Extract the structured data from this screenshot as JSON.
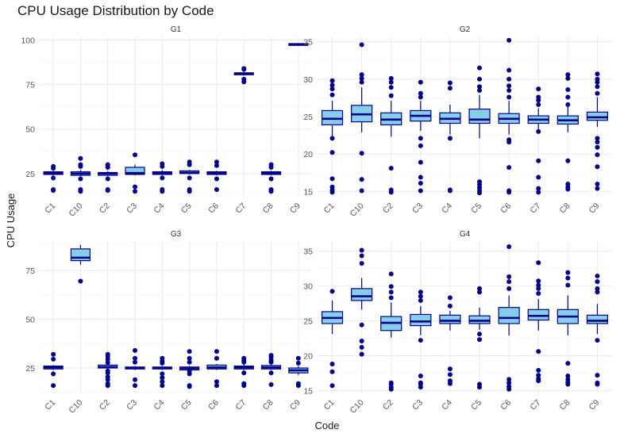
{
  "chart_data": {
    "type": "boxplot",
    "title": "CPU Usage Distribution by Code",
    "xlabel": "Code",
    "ylabel": "CPU Usage",
    "categories": [
      "C1",
      "C10",
      "C2",
      "C3",
      "C4",
      "C5",
      "C6",
      "C7",
      "C8",
      "C9"
    ],
    "colors": {
      "box_fill": "#87ceeb",
      "box_line": "#00008b",
      "outlier": "#00008b",
      "grid": "#ebebeb"
    },
    "grid": true,
    "panels": [
      {
        "name": "G1",
        "ylim": [
          12,
          102
        ],
        "yticks": [
          25,
          50,
          75,
          100
        ],
        "boxes": [
          {
            "cat": "C1",
            "q1": 24.5,
            "median": 25.3,
            "q3": 26,
            "whislo": 24,
            "whishi": 26.5,
            "outliers": [
              29,
              28,
              22.5,
              16,
              15.5
            ]
          },
          {
            "cat": "C10",
            "q1": 24,
            "median": 25,
            "q3": 26,
            "whislo": 23.5,
            "whishi": 27,
            "outliers": [
              33.5,
              30,
              29,
              22,
              16,
              15
            ]
          },
          {
            "cat": "C2",
            "q1": 24,
            "median": 25,
            "q3": 25.6,
            "whislo": 23.5,
            "whishi": 26.5,
            "outliers": [
              30,
              28.5,
              22,
              16,
              15.5
            ]
          },
          {
            "cat": "C3",
            "q1": 24.5,
            "median": 25.3,
            "q3": 28.5,
            "whislo": 24,
            "whishi": 30,
            "outliers": [
              35.5,
              17.5,
              15
            ]
          },
          {
            "cat": "C4",
            "q1": 24.5,
            "median": 25.3,
            "q3": 26,
            "whislo": 24,
            "whishi": 27,
            "outliers": [
              30.5,
              29,
              22.5,
              16,
              15
            ]
          },
          {
            "cat": "C5",
            "q1": 25,
            "median": 25.5,
            "q3": 26.5,
            "whislo": 24.5,
            "whishi": 27,
            "outliers": [
              31.5,
              30,
              22.5,
              16,
              15
            ]
          },
          {
            "cat": "C6",
            "q1": 24.5,
            "median": 25.3,
            "q3": 26,
            "whislo": 24,
            "whishi": 26.5,
            "outliers": [
              31.5,
              29.5,
              22,
              16
            ]
          },
          {
            "cat": "C7",
            "q1": 80.5,
            "median": 81,
            "q3": 81.6,
            "whislo": 80,
            "whishi": 82,
            "outliers": [
              84,
              83.5,
              78,
              76.5
            ]
          },
          {
            "cat": "C8",
            "q1": 24.5,
            "median": 25.3,
            "q3": 26,
            "whislo": 24,
            "whishi": 26.5,
            "outliers": [
              30,
              28.5,
              22,
              16,
              15
            ]
          },
          {
            "cat": "C9",
            "q1": 97,
            "median": 97.5,
            "q3": 98,
            "whislo": 96.8,
            "whishi": 98.3,
            "outliers": []
          }
        ]
      },
      {
        "name": "G2",
        "ylim": [
          14.3,
          35.7
        ],
        "yticks": [
          15,
          20,
          25,
          30,
          35
        ],
        "boxes": [
          {
            "cat": "C1",
            "q1": 23.9,
            "median": 24.7,
            "q3": 25.8,
            "whislo": 22.4,
            "whishi": 27.1,
            "outliers": [
              29.8,
              29.2,
              28.7,
              27.9,
              22.1,
              20.2,
              16.7,
              15.6,
              15.2,
              14.9
            ]
          },
          {
            "cat": "C10",
            "q1": 24.3,
            "median": 25.3,
            "q3": 26.5,
            "whislo": 22.9,
            "whishi": 28.9,
            "outliers": [
              34.6,
              30.6,
              30.1,
              29.6,
              20.1,
              16.6,
              15.1
            ]
          },
          {
            "cat": "C2",
            "q1": 23.9,
            "median": 24.6,
            "q3": 25.5,
            "whislo": 22.3,
            "whishi": 27.1,
            "outliers": [
              30.1,
              29.6,
              28.9,
              27.8,
              18.1,
              15.2,
              14.9
            ]
          },
          {
            "cat": "C3",
            "q1": 24.4,
            "median": 25.1,
            "q3": 25.8,
            "whislo": 23.1,
            "whishi": 27.1,
            "outliers": [
              29.6,
              28.1,
              27.6,
              22.1,
              21.1,
              18.9,
              16.9,
              16.1,
              15.1
            ]
          },
          {
            "cat": "C4",
            "q1": 24.1,
            "median": 24.7,
            "q3": 25.5,
            "whislo": 22.6,
            "whishi": 26.6,
            "outliers": [
              29.5,
              28.8,
              22.1,
              15.2,
              15.1
            ]
          },
          {
            "cat": "C5",
            "q1": 24.1,
            "median": 24.6,
            "q3": 26.0,
            "whislo": 22.1,
            "whishi": 27.9,
            "outliers": [
              31.5,
              30.0,
              29.0,
              28.5,
              16.3,
              15.9,
              15.5,
              15.1,
              14.8
            ]
          },
          {
            "cat": "C6",
            "q1": 24.1,
            "median": 24.7,
            "q3": 25.4,
            "whislo": 22.6,
            "whishi": 27.1,
            "outliers": [
              35.2,
              31.2,
              30.0,
              29.1,
              28.5,
              27.6,
              21.9,
              21.6,
              18.2,
              15.1,
              14.9
            ]
          },
          {
            "cat": "C7",
            "q1": 24.1,
            "median": 24.6,
            "q3": 25.1,
            "whislo": 23.1,
            "whishi": 26.1,
            "outliers": [
              28.7,
              27.6,
              27.2,
              26.6,
              23.0,
              19.1,
              16.9,
              15.4,
              14.9
            ]
          },
          {
            "cat": "C8",
            "q1": 24.0,
            "median": 24.5,
            "q3": 25.1,
            "whislo": 22.9,
            "whishi": 26.6,
            "outliers": [
              30.6,
              30.1,
              28.6,
              27.6,
              26.6,
              19.1,
              16.0,
              15.6,
              15.3
            ]
          },
          {
            "cat": "C9",
            "q1": 24.5,
            "median": 24.9,
            "q3": 25.6,
            "whislo": 23.6,
            "whishi": 27.6,
            "outliers": [
              30.7,
              30.0,
              29.6,
              29.0,
              28.1,
              22.1,
              21.6,
              20.9,
              19.9,
              18.3,
              16.0,
              15.4
            ]
          }
        ]
      },
      {
        "name": "G3",
        "ylim": [
          12,
          90
        ],
        "yticks": [
          25,
          50,
          75
        ],
        "boxes": [
          {
            "cat": "C1",
            "q1": 24.5,
            "median": 25.3,
            "q3": 26,
            "whislo": 24,
            "whishi": 26.5,
            "outliers": [
              32,
              29.5,
              22,
              16
            ]
          },
          {
            "cat": "C10",
            "q1": 80,
            "median": 81.5,
            "q3": 86,
            "whislo": 78,
            "whishi": 88,
            "outliers": [
              69.5
            ]
          },
          {
            "cat": "C2",
            "q1": 25,
            "median": 25.5,
            "q3": 26.5,
            "whislo": 24.5,
            "whishi": 27,
            "outliers": [
              32,
              31,
              29.5,
              27.8,
              23.5,
              22.5,
              20.5,
              19,
              17,
              16
            ]
          },
          {
            "cat": "C3",
            "q1": 24.5,
            "median": 25,
            "q3": 25.5,
            "whislo": 24,
            "whishi": 26,
            "outliers": [
              34,
              30,
              28,
              19,
              16
            ]
          },
          {
            "cat": "C4",
            "q1": 24.5,
            "median": 25,
            "q3": 25.5,
            "whislo": 24,
            "whishi": 26,
            "outliers": [
              30,
              28.5,
              27.5,
              22,
              20,
              18,
              16
            ]
          },
          {
            "cat": "C5",
            "q1": 24,
            "median": 24.8,
            "q3": 25.5,
            "whislo": 23.5,
            "whishi": 26,
            "outliers": [
              33.5,
              30,
              28,
              23.5,
              22,
              16,
              15.5
            ]
          },
          {
            "cat": "C6",
            "q1": 24.5,
            "median": 25.3,
            "q3": 26.5,
            "whislo": 24,
            "whishi": 27,
            "outliers": [
              33.5,
              30,
              18,
              16
            ]
          },
          {
            "cat": "C7",
            "q1": 24.5,
            "median": 25.3,
            "q3": 26,
            "whislo": 24,
            "whishi": 27,
            "outliers": [
              30,
              29,
              28,
              22.5,
              17,
              16
            ]
          },
          {
            "cat": "C8",
            "q1": 24.5,
            "median": 25.3,
            "q3": 26.3,
            "whislo": 24,
            "whishi": 27,
            "outliers": [
              31.5,
              30.5,
              29,
              28,
              22.5,
              16.5
            ]
          },
          {
            "cat": "C9",
            "q1": 22.5,
            "median": 23.8,
            "q3": 25,
            "whislo": 21.5,
            "whishi": 26,
            "outliers": [
              30,
              27.5,
              17,
              16
            ]
          }
        ]
      },
      {
        "name": "G4",
        "ylim": [
          14.6,
          36.4
        ],
        "yticks": [
          15,
          20,
          25,
          30,
          35
        ],
        "boxes": [
          {
            "cat": "C1",
            "q1": 24.6,
            "median": 25.4,
            "q3": 26.3,
            "whislo": 23.1,
            "whishi": 27.9,
            "outliers": [
              29.2,
              18.8,
              17.7,
              15.7
            ]
          },
          {
            "cat": "C10",
            "q1": 27.9,
            "median": 28.5,
            "q3": 29.6,
            "whislo": 26.6,
            "whishi": 31.1,
            "outliers": [
              35.1,
              34.3,
              33.2,
              24.4,
              22.1,
              21.2,
              20.2
            ]
          },
          {
            "cat": "C2",
            "q1": 23.6,
            "median": 24.7,
            "q3": 25.6,
            "whislo": 22.6,
            "whishi": 27.6,
            "outliers": [
              31.7,
              29.9,
              29.1,
              28.3,
              16.1,
              15.9,
              15.5,
              15.2
            ]
          },
          {
            "cat": "C3",
            "q1": 24.3,
            "median": 24.9,
            "q3": 25.9,
            "whislo": 22.9,
            "whishi": 27.1,
            "outliers": [
              29.1,
              28.5,
              27.9,
              22.2,
              17.1,
              16.1,
              15.9,
              15.5
            ]
          },
          {
            "cat": "C4",
            "q1": 24.6,
            "median": 25.0,
            "q3": 25.8,
            "whislo": 23.6,
            "whishi": 26.4,
            "outliers": [
              28.3,
              27.1,
              18.1,
              17.3,
              16.4,
              16.0
            ]
          },
          {
            "cat": "C5",
            "q1": 24.6,
            "median": 25.0,
            "q3": 25.7,
            "whislo": 23.7,
            "whishi": 26.9,
            "outliers": [
              29.6,
              29.1,
              23.1,
              22.3,
              15.9,
              15.5
            ]
          },
          {
            "cat": "C6",
            "q1": 24.6,
            "median": 25.4,
            "q3": 26.9,
            "whislo": 22.9,
            "whishi": 28.6,
            "outliers": [
              35.6,
              31.3,
              30.6,
              29.6,
              16.6,
              16.1,
              15.6,
              15.2
            ]
          },
          {
            "cat": "C7",
            "q1": 25.1,
            "median": 25.7,
            "q3": 26.6,
            "whislo": 23.6,
            "whishi": 28.1,
            "outliers": [
              33.3,
              30.7,
              30.1,
              29.6,
              28.9,
              20.6,
              17.9,
              17.2,
              16.7,
              16.4
            ]
          },
          {
            "cat": "C8",
            "q1": 24.6,
            "median": 25.6,
            "q3": 26.6,
            "whislo": 22.9,
            "whishi": 28.6,
            "outliers": [
              31.9,
              31.1,
              30.1,
              18.9,
              17.1,
              16.6,
              16.2,
              15.9
            ]
          },
          {
            "cat": "C9",
            "q1": 24.6,
            "median": 25.0,
            "q3": 25.8,
            "whislo": 23.1,
            "whishi": 27.4,
            "outliers": [
              31.4,
              30.6,
              29.6,
              29.1,
              22.2,
              17.2,
              16.1,
              15.9
            ]
          }
        ]
      }
    ]
  }
}
